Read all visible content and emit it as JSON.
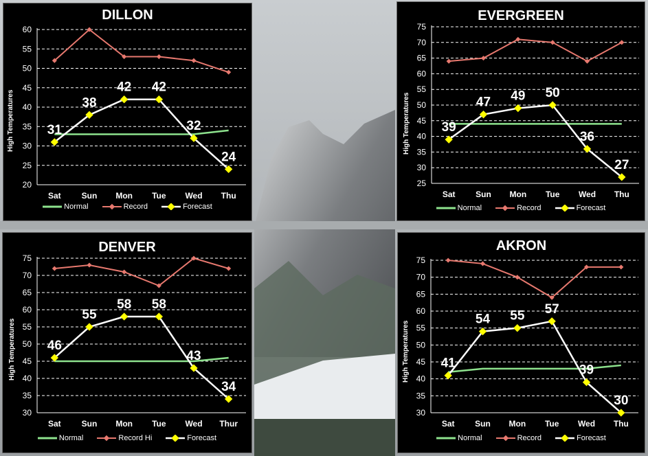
{
  "colors": {
    "normal": "#8ee38e",
    "record": "#e8796f",
    "forecast_line": "#ffffff",
    "forecast_marker": "#ffff00",
    "panel_bg": "#000000",
    "grid": "#ffffff"
  },
  "chart_data": [
    {
      "type": "line",
      "title": "DILLON",
      "ylabel": "High Temperatures",
      "categories": [
        "Sat",
        "Sun",
        "Mon",
        "Tue",
        "Wed",
        "Thu"
      ],
      "ylim": [
        20,
        60
      ],
      "ystep": 5,
      "grid": true,
      "legend_position": "bottom",
      "series": [
        {
          "name": "Normal",
          "values": [
            33,
            33,
            33,
            33,
            33,
            34
          ]
        },
        {
          "name": "Record",
          "values": [
            52,
            60,
            53,
            53,
            52,
            49
          ]
        },
        {
          "name": "Forecast",
          "values": [
            31,
            38,
            42,
            42,
            32,
            24
          ]
        }
      ],
      "data_labels": [
        "31",
        "38",
        "42",
        "42",
        "32",
        "24"
      ]
    },
    {
      "type": "line",
      "title": "EVERGREEN",
      "ylabel": "High Temperatures",
      "categories": [
        "Sat",
        "Sun",
        "Mon",
        "Tue",
        "Wed",
        "Thu"
      ],
      "ylim": [
        25,
        75
      ],
      "ystep": 5,
      "grid": true,
      "legend_position": "bottom",
      "series": [
        {
          "name": "Normal",
          "values": [
            44,
            44,
            44,
            44,
            44,
            44
          ]
        },
        {
          "name": "Record",
          "values": [
            64,
            65,
            71,
            70,
            64,
            70
          ]
        },
        {
          "name": "Forecast",
          "values": [
            39,
            47,
            49,
            50,
            36,
            27
          ]
        }
      ],
      "data_labels": [
        "39",
        "47",
        "49",
        "50",
        "36",
        "27"
      ]
    },
    {
      "type": "line",
      "title": "DENVER",
      "ylabel": "High Temperatures",
      "categories": [
        "Sat",
        "Sun",
        "Mon",
        "Tue",
        "Wed",
        "Thur"
      ],
      "ylim": [
        30,
        75
      ],
      "ystep": 5,
      "grid": true,
      "legend_position": "bottom",
      "series": [
        {
          "name": "Normal",
          "values": [
            45,
            45,
            45,
            45,
            45,
            46
          ]
        },
        {
          "name": "Record Hi",
          "values": [
            72,
            73,
            71,
            67,
            75,
            72
          ]
        },
        {
          "name": "Forecast",
          "values": [
            46,
            55,
            58,
            58,
            43,
            34
          ]
        }
      ],
      "data_labels": [
        "46",
        "55",
        "58",
        "58",
        "43",
        "34"
      ]
    },
    {
      "type": "line",
      "title": "AKRON",
      "ylabel": "High Temperatures",
      "categories": [
        "Sat",
        "Sun",
        "Mon",
        "Tue",
        "Wed",
        "Thu"
      ],
      "ylim": [
        30,
        75
      ],
      "ystep": 5,
      "grid": true,
      "legend_position": "bottom",
      "series": [
        {
          "name": "Normal",
          "values": [
            42,
            43,
            43,
            43,
            43,
            44
          ]
        },
        {
          "name": "Record",
          "values": [
            75,
            74,
            70,
            64,
            73,
            73
          ]
        },
        {
          "name": "Forecast",
          "values": [
            41,
            54,
            55,
            57,
            39,
            30
          ]
        }
      ],
      "data_labels": [
        "41",
        "54",
        "55",
        "57",
        "39",
        "30"
      ]
    }
  ]
}
